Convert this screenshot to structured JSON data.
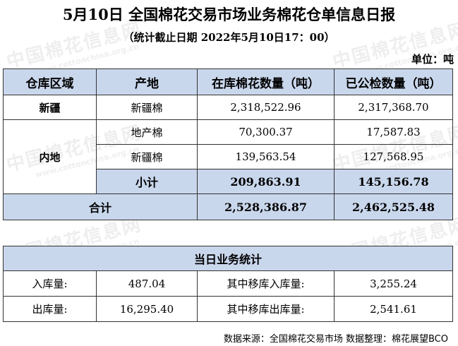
{
  "title": "5月10日 全国棉花交易市场业务棉花仓单信息日报",
  "subtitle": "（统计截止日期 2022年5月10日17：00）",
  "unit": "单位：吨",
  "watermark": {
    "cn": "中国棉花信息网",
    "en": "www.cottonchina.org.cn"
  },
  "table": {
    "headers": [
      "仓库区域",
      "产地",
      "在库棉花数量（吨）",
      "已公检数量（吨）"
    ],
    "xinjiang": {
      "region": "新疆",
      "origin": "新疆棉",
      "in_stock": "2,318,522.96",
      "inspected": "2,317,368.70"
    },
    "neidi": {
      "region": "内地",
      "rows": [
        {
          "origin": "地产棉",
          "in_stock": "70,300.37",
          "inspected": "17,587.83"
        },
        {
          "origin": "新疆棉",
          "in_stock": "139,563.54",
          "inspected": "127,568.95"
        }
      ],
      "subtotal": {
        "label": "小计",
        "in_stock": "209,863.91",
        "inspected": "145,156.78"
      }
    },
    "total": {
      "label": "合计",
      "in_stock": "2,528,386.87",
      "inspected": "2,462,525.48"
    }
  },
  "daily": {
    "title": "当日业务统计",
    "in_label": "入库量:",
    "in_value": "487.04",
    "transfer_in_label": "其中移库入库量:",
    "transfer_in_value": "3,255.24",
    "out_label": "出库量:",
    "out_value": "16,295.40",
    "transfer_out_label": "其中移库出库量:",
    "transfer_out_value": "2,541.61"
  },
  "source": "数据来源：全国棉花交易市场 数据整理：棉花展望BCO"
}
